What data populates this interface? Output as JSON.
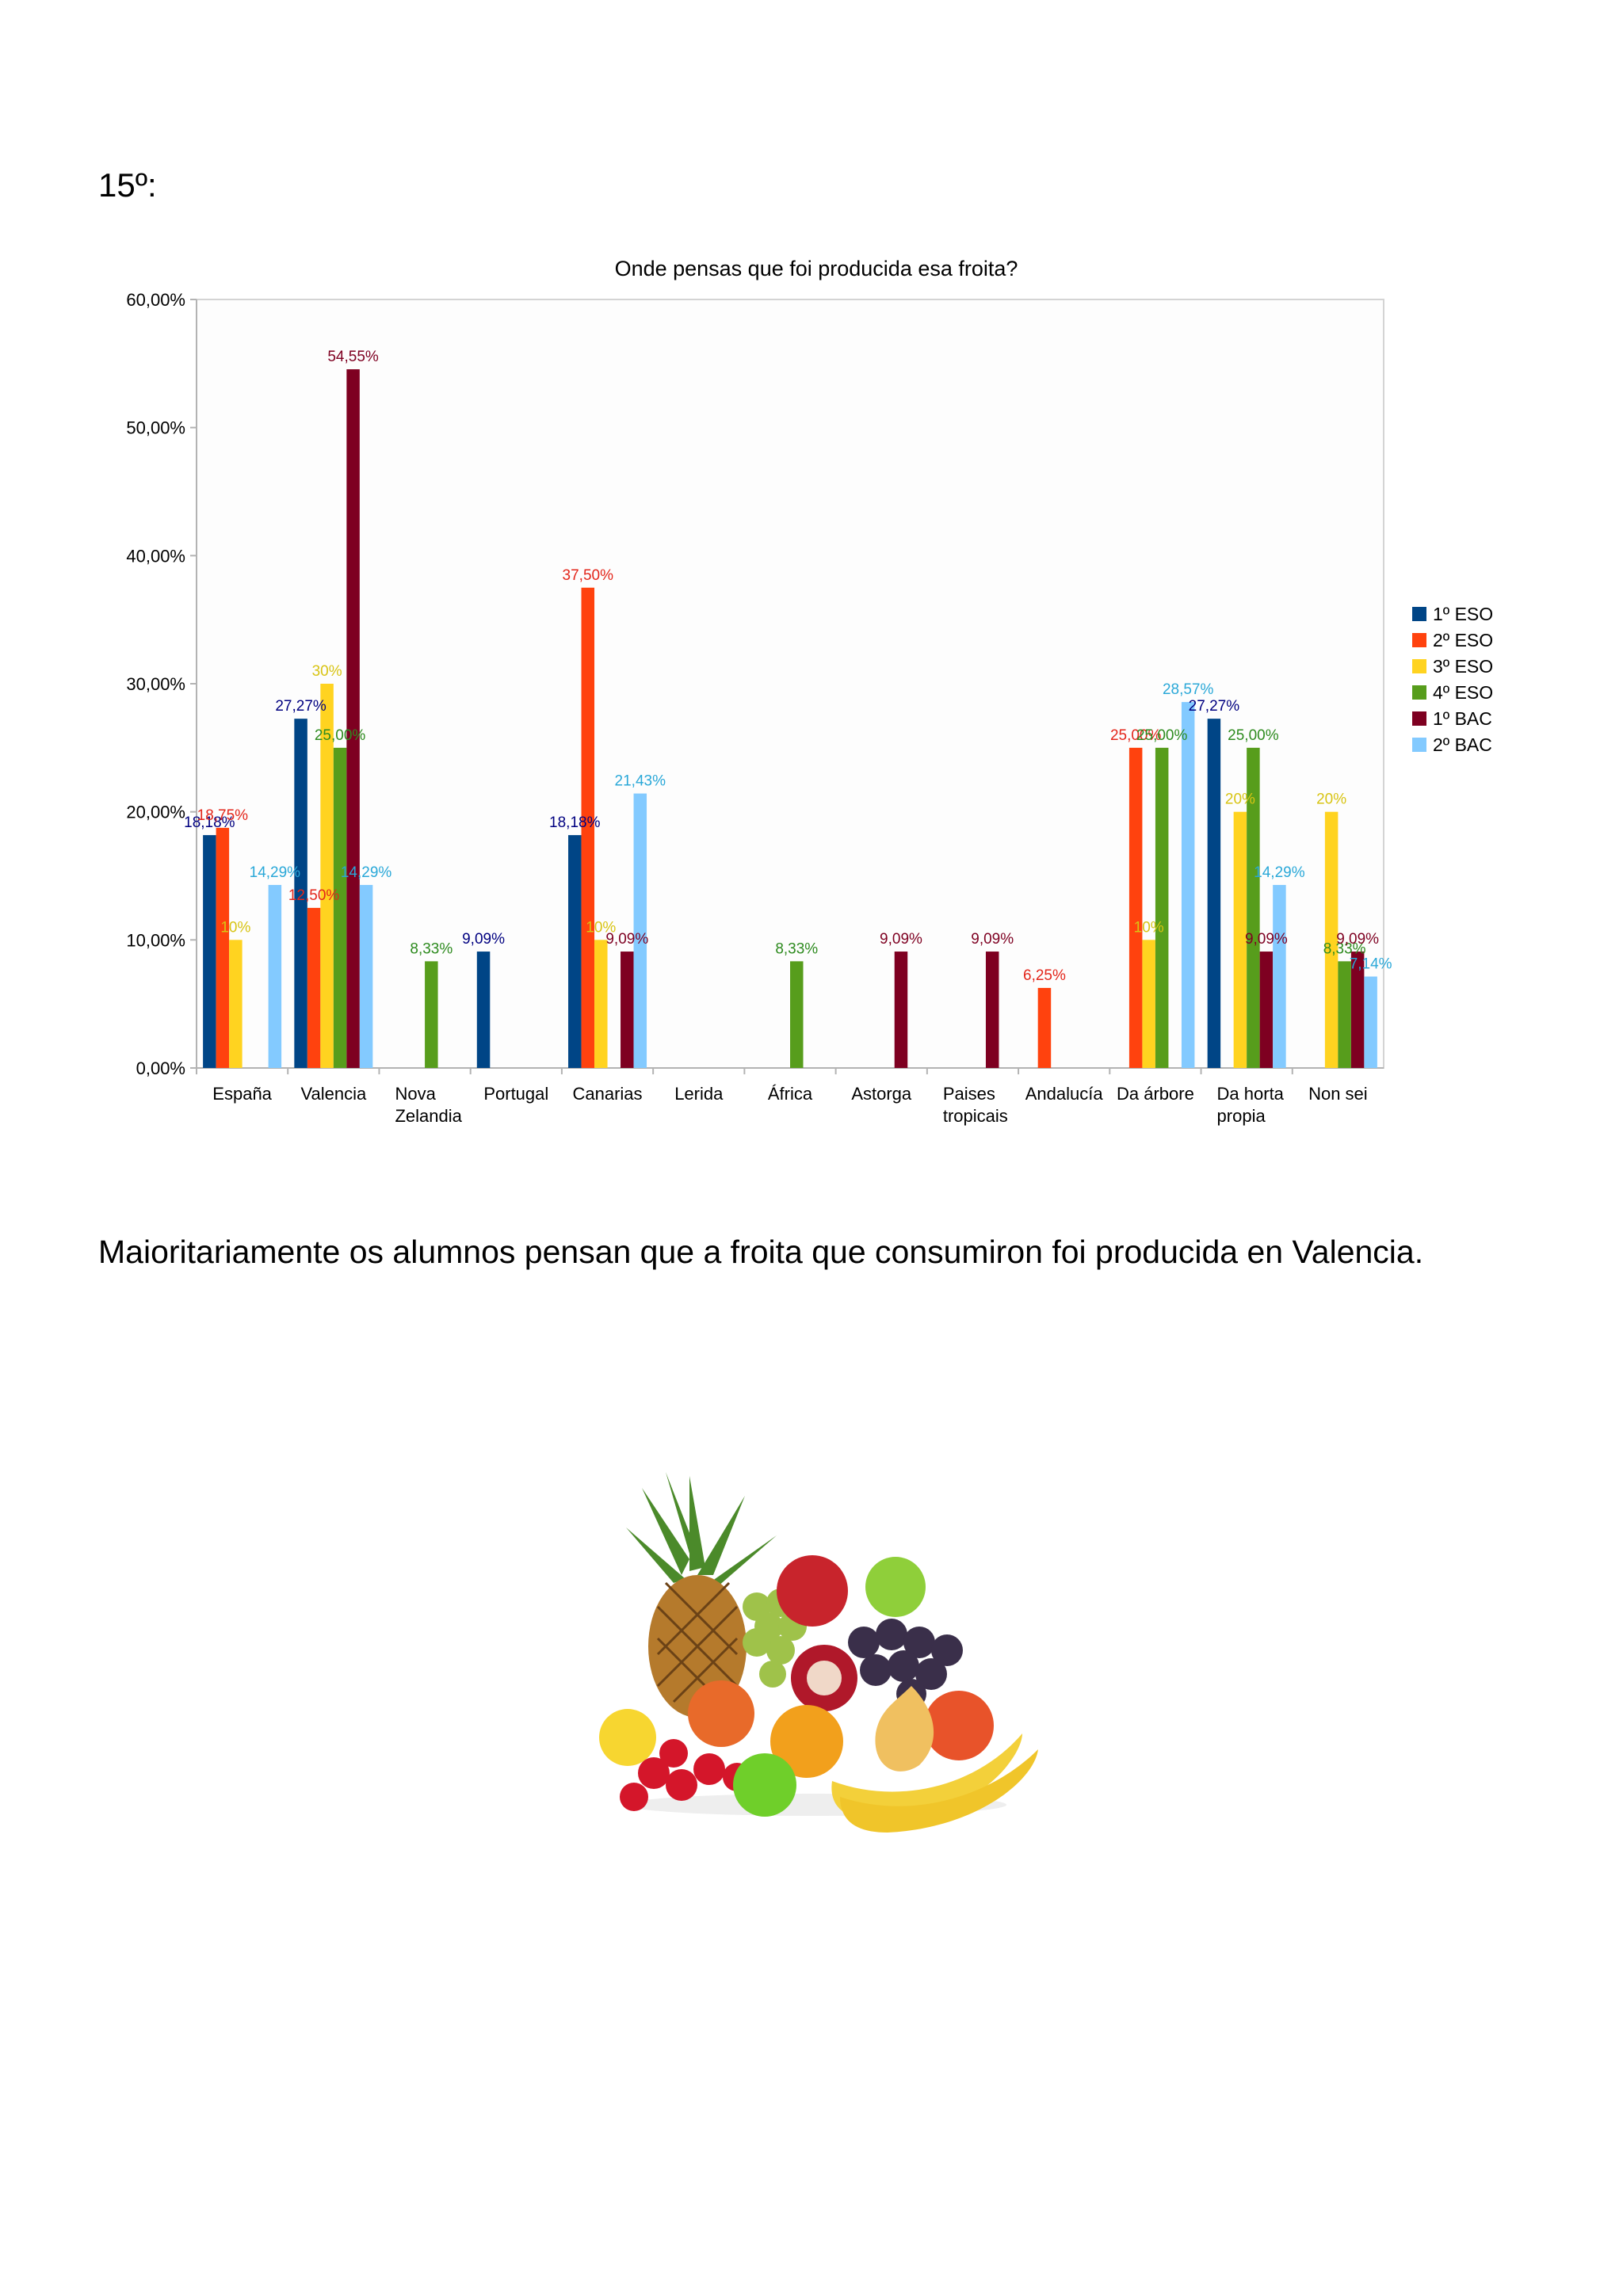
{
  "heading": "15º:",
  "conclusion": "Maioritariamente os alumnos pensan que a froita que consumiron foi producida en Valencia.",
  "chart_data": {
    "type": "bar",
    "title": "Onde pensas que foi producida esa froita?",
    "xlabel": "",
    "ylabel": "",
    "ylim": [
      0,
      60
    ],
    "yticks": [
      "0,00%",
      "10,00%",
      "20,00%",
      "30,00%",
      "40,00%",
      "50,00%",
      "60,00%"
    ],
    "grid": false,
    "legend_position": "right",
    "categories": [
      [
        "España"
      ],
      [
        "Valencia"
      ],
      [
        "Nova",
        "Zelandia"
      ],
      [
        "Portugal"
      ],
      [
        "Canarias"
      ],
      [
        "Lerida"
      ],
      [
        "África"
      ],
      [
        "Astorga"
      ],
      [
        "Paises",
        "tropicais"
      ],
      [
        "Andalucía"
      ],
      [
        "Da árbore"
      ],
      [
        "Da horta",
        "propia"
      ],
      [
        "Non sei"
      ]
    ],
    "series": [
      {
        "name": "1º ESO",
        "color": "#004586",
        "label_color": "#000080",
        "values": [
          18.18,
          27.27,
          0,
          9.09,
          18.18,
          0,
          0,
          0,
          0,
          0,
          0,
          27.27,
          0
        ],
        "labels": [
          "18,18%",
          "27,27%",
          "",
          "9,09%",
          "18,18%",
          "",
          "",
          "",
          "",
          "",
          "",
          "27,27%",
          ""
        ]
      },
      {
        "name": "2º ESO",
        "color": "#ff420e",
        "label_color": "#e3261b",
        "values": [
          18.75,
          12.5,
          0,
          0,
          37.5,
          0,
          0,
          0,
          0,
          6.25,
          25.0,
          0,
          0
        ],
        "labels": [
          "18,75%",
          "12,50%",
          "",
          "",
          "37,50%",
          "",
          "",
          "",
          "",
          "6,25%",
          "25,00%",
          "",
          ""
        ]
      },
      {
        "name": "3º ESO",
        "color": "#ffd320",
        "label_color": "#d8c414",
        "values": [
          10,
          30,
          0,
          0,
          10,
          0,
          0,
          0,
          0,
          0,
          10,
          20,
          20
        ],
        "labels": [
          "10%",
          "30%",
          "",
          "",
          "10%",
          "",
          "",
          "",
          "",
          "",
          "10%",
          "20%",
          "20%"
        ]
      },
      {
        "name": "4º ESO",
        "color": "#579d1c",
        "label_color": "#2e8b1f",
        "values": [
          0,
          25.0,
          8.33,
          0,
          0,
          0,
          8.33,
          0,
          0,
          0,
          25.0,
          25.0,
          8.33
        ],
        "labels": [
          "",
          "25,00%",
          "8,33%",
          "",
          "",
          "",
          "8,33%",
          "",
          "",
          "",
          "25,00%",
          "25,00%",
          "8,33%"
        ]
      },
      {
        "name": "1º BAC",
        "color": "#7e0021",
        "label_color": "#7e0021",
        "values": [
          0,
          54.55,
          0,
          0,
          9.09,
          0,
          0,
          9.09,
          9.09,
          0,
          0,
          9.09,
          9.09
        ],
        "labels": [
          "",
          "54,55%",
          "",
          "",
          "9,09%",
          "",
          "",
          "9,09%",
          "9,09%",
          "",
          "",
          "9,09%",
          "9,09%"
        ]
      },
      {
        "name": "2º BAC",
        "color": "#83caff",
        "label_color": "#2aa8d8",
        "values": [
          14.29,
          14.29,
          0,
          0,
          21.43,
          0,
          0,
          0,
          0,
          0,
          28.57,
          14.29,
          7.14
        ],
        "labels": [
          "14,29%",
          "14,29%",
          "",
          "",
          "21,43%",
          "",
          "",
          "",
          "",
          "",
          "28,57%",
          "14,29%",
          "7,14%"
        ]
      }
    ]
  }
}
